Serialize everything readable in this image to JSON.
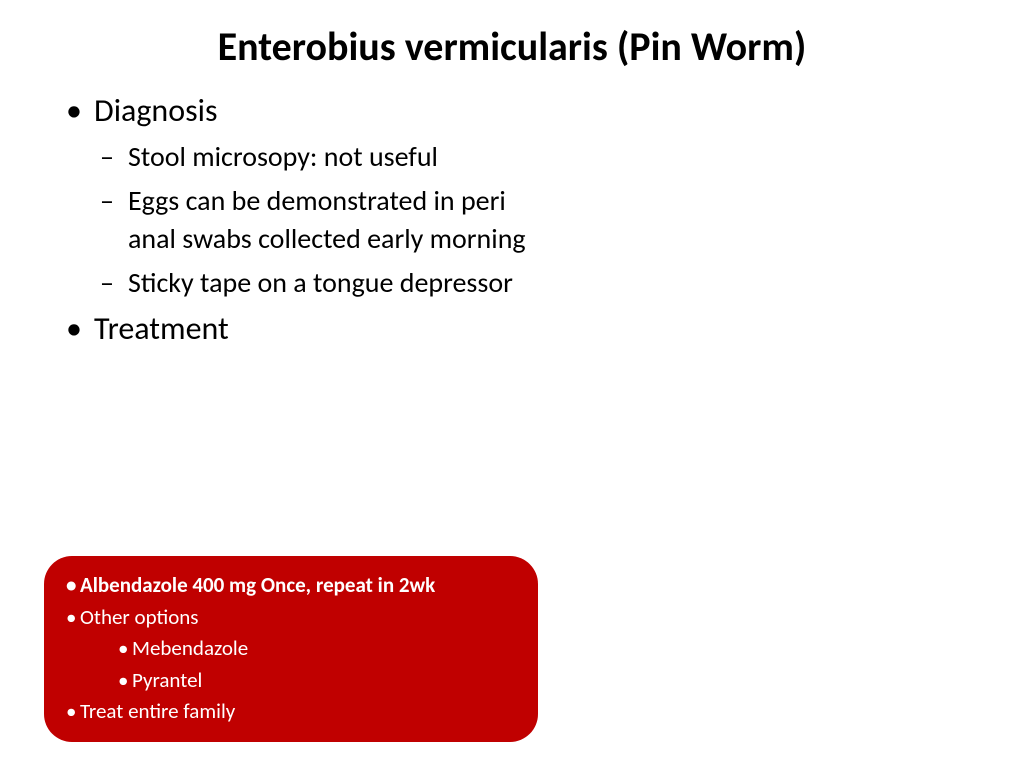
{
  "title": "Enterobius vermicularis (Pin Worm)",
  "bullets": {
    "diagnosis": {
      "heading": "Diagnosis",
      "items": [
        "Stool microsopy: not useful",
        "Eggs can be demonstrated in peri anal swabs collected early morning",
        "Sticky tape on a tongue depressor"
      ]
    },
    "treatment": {
      "heading": "Treatment"
    }
  },
  "treatment_box": {
    "background_color": "#c00000",
    "text_color": "#ffffff",
    "line1": "Albendazole 400 mg Once, repeat in 2wk",
    "line2": "Other options",
    "sub1": "Mebendazole",
    "sub2": "Pyrantel",
    "line3": "Treat entire family"
  },
  "styling": {
    "title_fontsize": 40,
    "lvl1_fontsize": 32,
    "lvl2_fontsize": 28,
    "box_fontsize": 21,
    "box_radius": 28,
    "page_bg": "#ffffff",
    "text_color": "#000000"
  }
}
